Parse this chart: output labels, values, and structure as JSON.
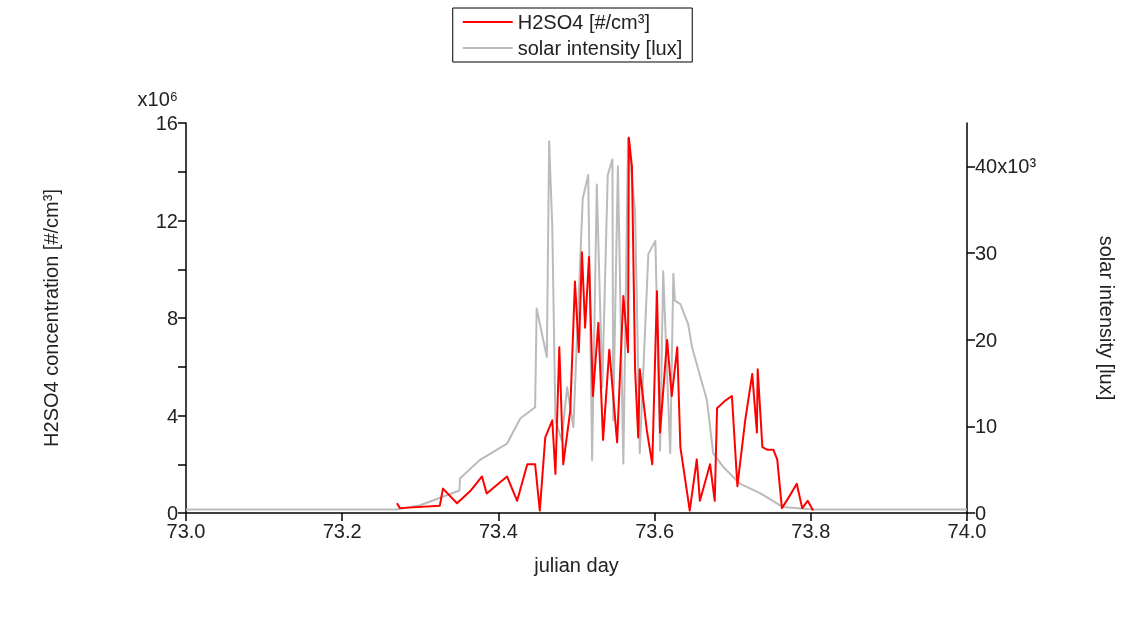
{
  "chart_data": {
    "type": "line",
    "xlabel": "julian day",
    "ylabel": "H2SO4 concentration [#/cm³]",
    "y2label": "solar intensity [lux]",
    "xlim": [
      73.0,
      74.0
    ],
    "xticks": [
      {
        "value": 73.0,
        "label": "73.0"
      },
      {
        "value": 73.2,
        "label": "73.2"
      },
      {
        "value": 73.4,
        "label": "73.4"
      },
      {
        "value": 73.6,
        "label": "73.6"
      },
      {
        "value": 73.8,
        "label": "73.8"
      },
      {
        "value": 74.0,
        "label": "74.0"
      }
    ],
    "ylim": [
      0,
      16
    ],
    "yticks": [
      0,
      {
        "value": 2,
        "label": null
      },
      4,
      {
        "value": 6,
        "label": null
      },
      8,
      {
        "value": 10,
        "label": null
      },
      12,
      {
        "value": 14,
        "label": null
      },
      16
    ],
    "y2lim": [
      0,
      45
    ],
    "y2ticks": [
      0,
      10,
      20,
      30,
      40
    ],
    "annotations": [
      "x10⁶",
      "x10³"
    ],
    "grid": false,
    "legend": "top",
    "marker": "none",
    "line_style": "solid",
    "series": [
      {
        "name": "H2SO4 [#/cm³]",
        "color": "#ff0000",
        "x": [
          73.27,
          73.274,
          73.325,
          73.329,
          73.347,
          73.364,
          73.379,
          73.385,
          73.411,
          73.424,
          73.437,
          73.447,
          73.453,
          73.46,
          73.469,
          73.473,
          73.478,
          73.483,
          73.492,
          73.498,
          73.503,
          73.507,
          73.511,
          73.516,
          73.521,
          73.528,
          73.534,
          73.542,
          73.552,
          73.56,
          73.566,
          73.567,
          73.571,
          73.575,
          73.579,
          73.581,
          73.59,
          73.597,
          73.603,
          73.607,
          73.616,
          73.622,
          73.629,
          73.633,
          73.645,
          73.654,
          73.658,
          73.671,
          73.677,
          73.68,
          73.69,
          73.699,
          73.706,
          73.716,
          73.725,
          73.731,
          73.732,
          73.738,
          73.744,
          73.752,
          73.757,
          73.763,
          73.771,
          73.782,
          73.789,
          73.796,
          73.803
        ],
        "values": [
          0.4,
          0.2,
          0.3,
          1.0,
          0.4,
          0.9,
          1.5,
          0.8,
          1.5,
          0.5,
          2.0,
          2.0,
          0.1,
          3.1,
          3.8,
          1.6,
          6.8,
          2.0,
          4.2,
          9.5,
          6.6,
          10.7,
          7.6,
          10.5,
          4.8,
          7.8,
          3.0,
          6.7,
          2.9,
          8.9,
          6.6,
          15.4,
          14.2,
          5.9,
          3.1,
          5.9,
          3.4,
          2.0,
          9.1,
          3.3,
          7.1,
          4.8,
          6.8,
          2.7,
          0.1,
          2.2,
          0.5,
          2.0,
          0.5,
          4.3,
          4.6,
          4.8,
          1.1,
          3.8,
          5.7,
          3.3,
          5.9,
          2.7,
          2.6,
          2.6,
          2.2,
          0.2,
          0.6,
          1.2,
          0.2,
          0.5,
          0.1
        ]
      },
      {
        "name": "solar intensity [lux]",
        "color": "#bbbbbb",
        "axis": "y2",
        "x": [
          73.0,
          73.27,
          73.3,
          73.35,
          73.351,
          73.376,
          73.411,
          73.428,
          73.447,
          73.449,
          73.462,
          73.465,
          73.469,
          73.473,
          73.481,
          73.488,
          73.496,
          73.508,
          73.515,
          73.52,
          73.526,
          73.533,
          73.54,
          73.546,
          73.547,
          73.553,
          73.56,
          73.566,
          73.575,
          73.581,
          73.592,
          73.601,
          73.607,
          73.611,
          73.62,
          73.624,
          73.626,
          73.633,
          73.643,
          73.648,
          73.667,
          73.675,
          73.688,
          73.709,
          73.735,
          73.764,
          73.803,
          74.0
        ],
        "values": [
          0.4,
          0.4,
          0.9,
          2.6,
          4.0,
          6.1,
          8.0,
          10.9,
          12.2,
          23.6,
          18.0,
          42.9,
          33.0,
          10.7,
          8.4,
          14.5,
          9.9,
          36.3,
          39.0,
          6.1,
          37.9,
          14.5,
          39.0,
          40.8,
          10.7,
          40.0,
          5.7,
          43.2,
          34.8,
          6.9,
          29.9,
          31.4,
          7.2,
          27.9,
          6.9,
          27.6,
          24.5,
          24.1,
          21.8,
          19.1,
          13.0,
          6.9,
          5.3,
          3.4,
          2.3,
          0.7,
          0.4,
          0.4
        ]
      }
    ]
  }
}
